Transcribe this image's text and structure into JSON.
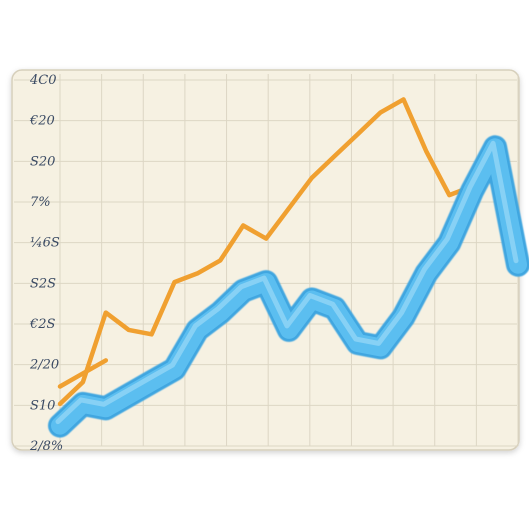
{
  "chart_data": {
    "type": "line",
    "title": "",
    "xlabel": "",
    "ylabel": "",
    "grid": true,
    "ylim": [
      0,
      8
    ],
    "y_tick_labels": [
      "4C0",
      "€20",
      "S20",
      "7%",
      "¼6S",
      "S2S",
      "€2S",
      "2/20",
      "S10",
      "2/8%"
    ],
    "x": [
      0,
      1,
      2,
      3,
      4,
      5,
      6,
      7,
      8,
      9,
      10,
      11,
      12,
      13,
      14,
      15,
      16,
      17,
      18,
      19,
      20
    ],
    "series": [
      {
        "color": "#f0a030",
        "values": [
          0.6,
          1.1,
          2.7,
          2.3,
          2.2,
          3.4,
          3.6,
          3.9,
          4.7,
          4.4,
          5.1,
          5.8,
          6.3,
          6.8,
          7.3,
          7.6,
          6.4,
          5.4,
          5.6,
          null,
          null
        ]
      },
      {
        "color": "#f0a030",
        "values": [
          1.0,
          1.3,
          1.6,
          null,
          null,
          null,
          null,
          null,
          null,
          null,
          null,
          null,
          null,
          null,
          null,
          null,
          null,
          null,
          null,
          null,
          null
        ]
      },
      {
        "color": "#5bbef0",
        "values": [
          0.1,
          0.6,
          0.5,
          0.8,
          1.1,
          1.4,
          2.3,
          2.7,
          3.2,
          3.4,
          2.3,
          3.0,
          2.8,
          2.0,
          1.9,
          2.6,
          3.6,
          4.3,
          5.5,
          6.5,
          3.8
        ]
      }
    ],
    "colors": {
      "background": "#f6f1e2",
      "grid": "#dcd6c4",
      "orange": "#f0a030",
      "blue": "#5bbef0"
    }
  }
}
